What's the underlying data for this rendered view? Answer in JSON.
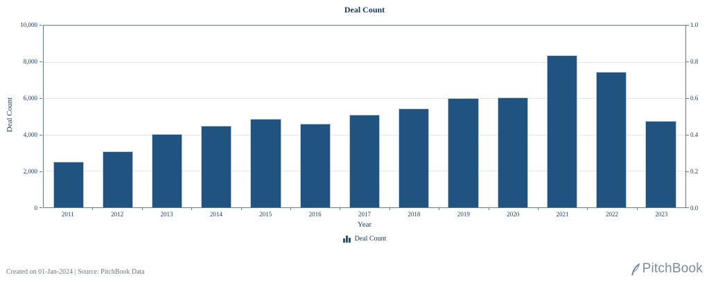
{
  "title": "Deal Count",
  "chart_data": {
    "type": "bar",
    "title": "Deal Count",
    "xlabel": "Year",
    "ylabel": "Deal Count",
    "categories": [
      "2011",
      "2012",
      "2013",
      "2014",
      "2015",
      "2016",
      "2017",
      "2018",
      "2019",
      "2020",
      "2021",
      "2022",
      "2023"
    ],
    "values": [
      2500,
      3100,
      4050,
      4500,
      4850,
      4600,
      5100,
      5450,
      6000,
      6050,
      8350,
      7450,
      4750
    ],
    "series_name": "Deal Count",
    "ylim": [
      0,
      10000
    ],
    "left_axis_ticks": [
      "10,000",
      "8,000",
      "6,000",
      "4,000",
      "2,000",
      "0"
    ],
    "right_axis_ticks": [
      "1.0",
      "0.8",
      "0.6",
      "0.4",
      "0.2",
      "0.0"
    ],
    "right_axis_ylim": [
      0.0,
      1.0
    ],
    "grid": true,
    "legend_position": "bottom",
    "legend_entries": [
      "Deal Count"
    ]
  },
  "legend": {
    "label": "Deal Count"
  },
  "axes": {
    "x_title": "Year",
    "y_title": "Deal Count"
  },
  "footer": {
    "created_text": "Created on 01-Jan-2024 | Source: PitchBook Data",
    "brand_text": "PitchBook"
  },
  "colors": {
    "bar_fill": "#20537f",
    "bar_stroke": "#b9cbda",
    "axis_line": "#5f7d7b",
    "grid_line": "#e4e6e6",
    "text_navy": "#17375e",
    "footer_gray": "#6a7683",
    "brand_gray": "#7b8b9e"
  }
}
